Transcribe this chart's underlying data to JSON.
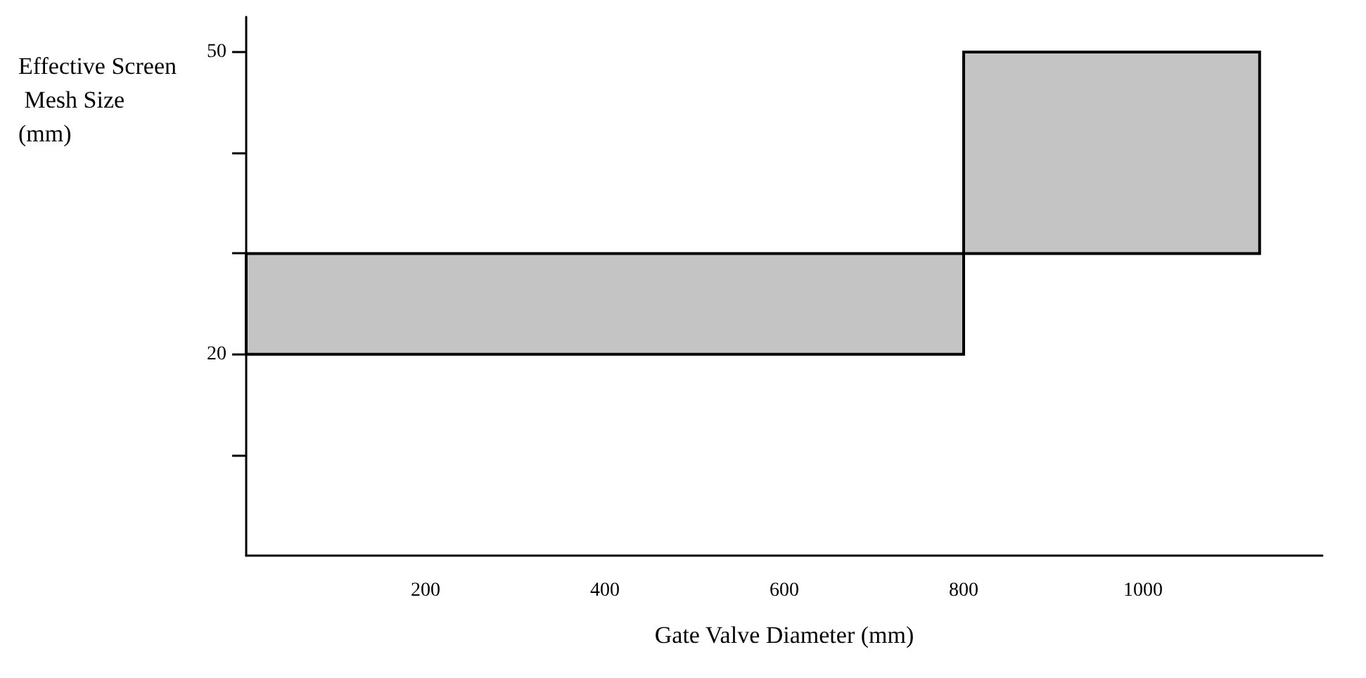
{
  "chart_data": {
    "type": "histogram",
    "xlabel": "Gate Valve Diameter (mm)",
    "ylabel": "Effective Screen Mesh Size (mm)",
    "bins": [
      0,
      800,
      1130
    ],
    "values": [
      10,
      20
    ],
    "base": [
      20,
      30
    ],
    "color": "#c4c4c4",
    "xlim": [
      0,
      1200
    ],
    "xticks": [
      200,
      400,
      600,
      800,
      1000
    ],
    "ylim": [
      0,
      53.5
    ],
    "yticks": [
      {
        "value": 10,
        "label": null
      },
      20,
      {
        "value": 30,
        "label": null
      },
      {
        "value": 40,
        "label": null
      },
      50
    ],
    "grid": false
  }
}
